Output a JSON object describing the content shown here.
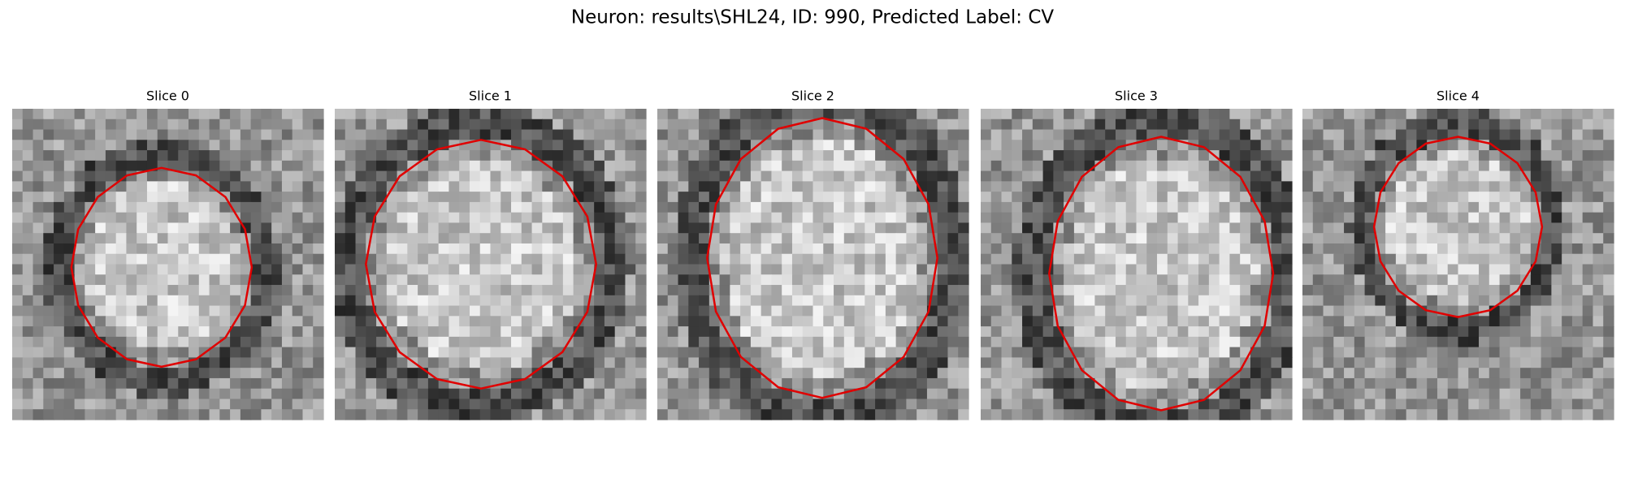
{
  "title": "Neuron: results\\SHL24, ID: 990, Predicted Label: CV",
  "panels": [
    {
      "title": "Slice 0"
    },
    {
      "title": "Slice 1"
    },
    {
      "title": "Slice 2"
    },
    {
      "title": "Slice 3"
    },
    {
      "title": "Slice 4"
    }
  ]
}
